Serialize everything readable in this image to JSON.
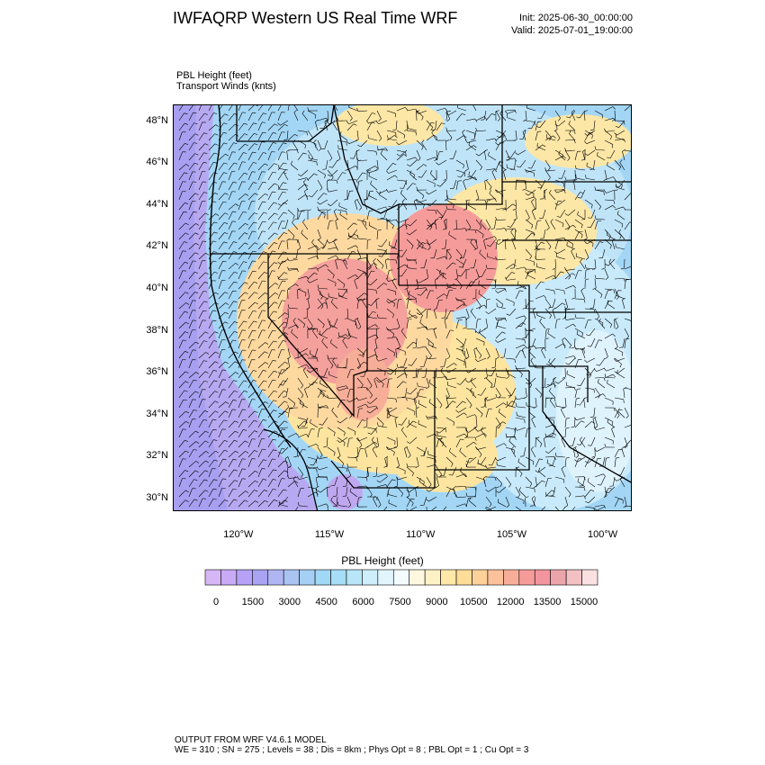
{
  "header": {
    "title": "IWFAQRP Western US Real Time WRF",
    "init": "Init: 2025-06-30_00:00:00",
    "valid": "Valid: 2025-07-01_19:00:00"
  },
  "subtitle": {
    "field": "PBL Height   (feet)",
    "overlay": "Transport Winds   (knts)"
  },
  "map": {
    "lat_ticks": [
      "48°N",
      "46°N",
      "44°N",
      "42°N",
      "40°N",
      "38°N",
      "36°N",
      "34°N",
      "32°N",
      "30°N"
    ],
    "lon_ticks": [
      "120°W",
      "115°W",
      "110°W",
      "105°W",
      "100°W"
    ],
    "extent": {
      "lon": [
        -123.6,
        -98.4
      ],
      "lat": [
        29.4,
        48.8
      ]
    }
  },
  "colorbar": {
    "title": "PBL Height  (feet)",
    "labels": [
      "0",
      "1500",
      "3000",
      "4500",
      "6000",
      "7500",
      "9000",
      "10500",
      "12000",
      "13500",
      "15000"
    ],
    "colors": [
      "#d6b6f5",
      "#c8aaf5",
      "#b5a1f5",
      "#a9a3f2",
      "#b0b6f2",
      "#a9c3f3",
      "#a6cff4",
      "#a0d8f5",
      "#a5def6",
      "#b8e6f8",
      "#cdeefa",
      "#e2f5fc",
      "#f3fbff",
      "#fff8e0",
      "#fff1c6",
      "#ffe8a8",
      "#fedd98",
      "#fdd19a",
      "#fac19a",
      "#f7ae98",
      "#f59c9a",
      "#f2959e",
      "#eca4ab",
      "#f3c0c4",
      "#fbe0e2"
    ]
  },
  "footer": {
    "line1": "OUTPUT FROM WRF V4.6.1 MODEL",
    "line2": "WE = 310 ; SN = 275 ; Levels = 38 ; Dis = 8km ; Phys Opt = 8 ; PBL Opt = 1 ; Cu Opt = 3"
  }
}
